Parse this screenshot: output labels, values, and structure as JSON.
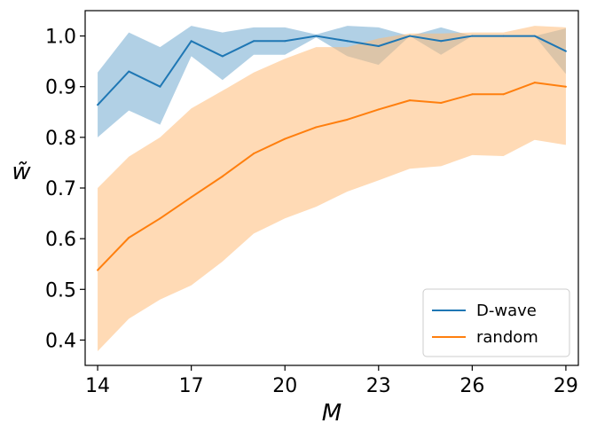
{
  "chart_data": {
    "type": "line",
    "title": "",
    "xlabel": "M",
    "ylabel": "w̃",
    "xlim": [
      13.6,
      29.4
    ],
    "ylim": [
      0.35,
      1.05
    ],
    "xticks": [
      14,
      17,
      20,
      23,
      26,
      29
    ],
    "xtick_labels": [
      "14",
      "17",
      "20",
      "23",
      "26",
      "29"
    ],
    "yticks": [
      0.4,
      0.5,
      0.6,
      0.7,
      0.8,
      0.9,
      1.0
    ],
    "ytick_labels": [
      "0.4",
      "0.5",
      "0.6",
      "0.7",
      "0.8",
      "0.9",
      "1.0"
    ],
    "grid": false,
    "legend_position": "bottom-right",
    "x": [
      14,
      15,
      16,
      17,
      18,
      19,
      20,
      21,
      22,
      23,
      24,
      25,
      26,
      27,
      28,
      29
    ],
    "series": [
      {
        "name": "D-wave",
        "color": "#1f77b4",
        "band_color": "#1f77b4",
        "values": [
          0.864,
          0.93,
          0.9,
          0.99,
          0.96,
          0.99,
          0.99,
          1.0,
          0.99,
          0.98,
          1.0,
          0.99,
          1.0,
          1.0,
          1.0,
          0.97
        ],
        "lower": [
          0.8,
          0.853,
          0.825,
          0.96,
          0.913,
          0.963,
          0.963,
          0.997,
          0.96,
          0.943,
          1.0,
          0.963,
          1.0,
          1.0,
          1.0,
          0.925
        ],
        "upper": [
          0.928,
          1.007,
          0.978,
          1.02,
          1.007,
          1.017,
          1.017,
          1.003,
          1.02,
          1.017,
          1.0,
          1.017,
          1.0,
          1.0,
          1.0,
          1.015
        ]
      },
      {
        "name": "random",
        "color": "#ff7f0e",
        "band_color": "#ffbb78",
        "values": [
          0.538,
          0.602,
          0.64,
          0.682,
          0.723,
          0.768,
          0.797,
          0.82,
          0.835,
          0.855,
          0.873,
          0.868,
          0.885,
          0.885,
          0.908,
          0.9
        ],
        "lower": [
          0.378,
          0.442,
          0.48,
          0.508,
          0.555,
          0.61,
          0.64,
          0.663,
          0.693,
          0.715,
          0.738,
          0.743,
          0.765,
          0.763,
          0.795,
          0.785
        ],
        "upper": [
          0.7,
          0.762,
          0.8,
          0.857,
          0.892,
          0.928,
          0.955,
          0.978,
          0.978,
          0.995,
          1.005,
          1.005,
          1.007,
          1.007,
          1.02,
          1.017
        ]
      }
    ]
  }
}
